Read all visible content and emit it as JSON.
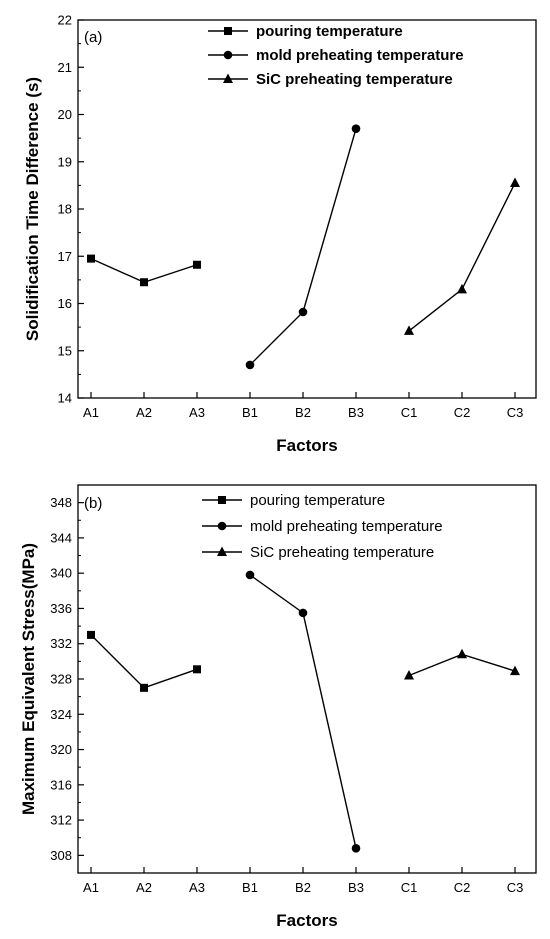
{
  "chart_data": [
    {
      "type": "line",
      "panel_label": "(a)",
      "xlabel": "Factors",
      "ylabel": "Solidification Time Difference (s)",
      "categories": [
        "A1",
        "A2",
        "A3",
        "B1",
        "B2",
        "B3",
        "C1",
        "C2",
        "C3"
      ],
      "ylim": [
        14,
        22
      ],
      "yticks": [
        14,
        15,
        16,
        17,
        18,
        19,
        20,
        21,
        22
      ],
      "legend_position": "top-right",
      "series": [
        {
          "name": "pouring temperature",
          "marker": "square",
          "x": [
            "A1",
            "A2",
            "A3"
          ],
          "values": [
            16.95,
            16.45,
            16.82
          ]
        },
        {
          "name": "mold preheating temperature",
          "marker": "circle",
          "x": [
            "B1",
            "B2",
            "B3"
          ],
          "values": [
            14.7,
            15.82,
            19.7
          ]
        },
        {
          "name": "SiC preheating temperature",
          "marker": "triangle",
          "x": [
            "C1",
            "C2",
            "C3"
          ],
          "values": [
            15.42,
            16.3,
            18.55
          ]
        }
      ]
    },
    {
      "type": "line",
      "panel_label": "(b)",
      "xlabel": "Factors",
      "ylabel": "Maximum Equivalent Stress(MPa)",
      "categories": [
        "A1",
        "A2",
        "A3",
        "B1",
        "B2",
        "B3",
        "C1",
        "C2",
        "C3"
      ],
      "ylim": [
        306,
        350
      ],
      "yticks": [
        308,
        312,
        316,
        320,
        324,
        328,
        332,
        336,
        340,
        344,
        348
      ],
      "legend_position": "top-right",
      "series": [
        {
          "name": "pouring temperature",
          "marker": "square",
          "x": [
            "A1",
            "A2",
            "A3"
          ],
          "values": [
            333.0,
            327.0,
            329.1
          ]
        },
        {
          "name": "mold preheating temperature",
          "marker": "circle",
          "x": [
            "B1",
            "B2",
            "B3"
          ],
          "values": [
            339.8,
            335.5,
            308.8
          ]
        },
        {
          "name": "SiC preheating temperature",
          "marker": "triangle",
          "x": [
            "C1",
            "C2",
            "C3"
          ],
          "values": [
            328.4,
            330.8,
            328.9
          ]
        }
      ]
    }
  ]
}
